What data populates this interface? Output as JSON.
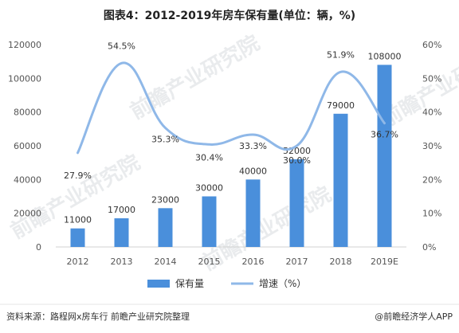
{
  "chart_data": {
    "type": "bar",
    "title": "图表4：2012-2019年房车保有量(单位：辆，%)",
    "categories": [
      "2012",
      "2013",
      "2014",
      "2015",
      "2016",
      "2017",
      "2018",
      "2019E"
    ],
    "series": [
      {
        "name": "保有量",
        "type": "bar",
        "axis": "left",
        "color": "#4a8fdb",
        "values": [
          11000,
          17000,
          23000,
          30000,
          40000,
          52000,
          79000,
          108000
        ],
        "labels": [
          "11000",
          "17000",
          "23000",
          "30000",
          "40000",
          "52000",
          "79000",
          "108000"
        ]
      },
      {
        "name": "增速（%）",
        "type": "line",
        "axis": "right",
        "color": "#8fb8e8",
        "values": [
          27.9,
          54.5,
          35.3,
          30.4,
          33.3,
          30.0,
          51.9,
          36.7
        ],
        "labels": [
          "27.9%",
          "54.5%",
          "35.3%",
          "30.4%",
          "33.3%",
          "30.0%",
          "51.9%",
          "36.7%"
        ]
      }
    ],
    "y_left": {
      "range": [
        0,
        120000
      ],
      "ticks": [
        "0",
        "20000",
        "40000",
        "60000",
        "80000",
        "100000",
        "120000"
      ]
    },
    "y_right": {
      "range": [
        0,
        60
      ],
      "ticks": [
        "0%",
        "10%",
        "20%",
        "30%",
        "40%",
        "50%",
        "60%"
      ]
    },
    "grid": false,
    "legend_position": "bottom-center"
  },
  "footer": {
    "source": "资料来源：路程网x房车行 前瞻产业研究院整理",
    "credit": "@前瞻经济学人APP"
  },
  "watermark": {
    "text": "前瞻产业研究院"
  }
}
